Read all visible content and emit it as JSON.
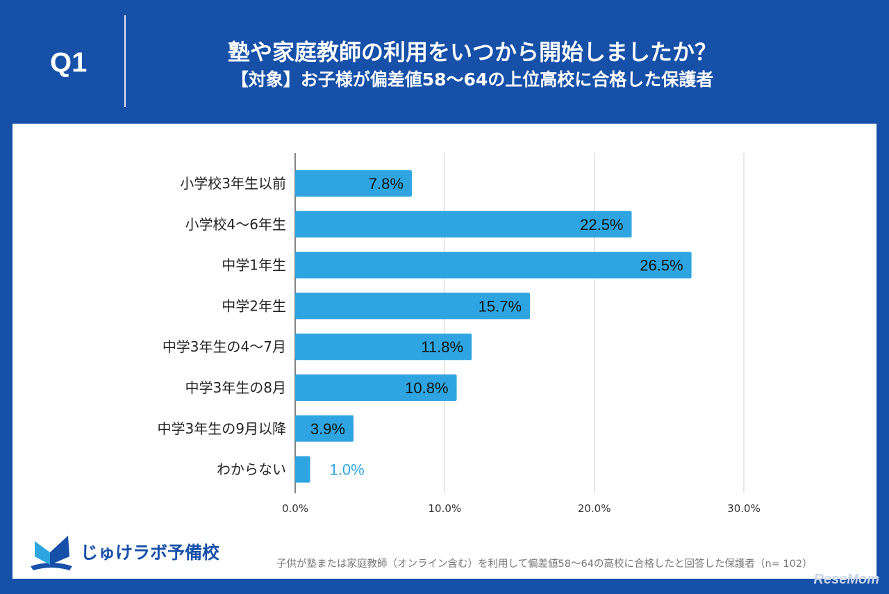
{
  "header": {
    "q_label": "Q1",
    "title": "塾や家庭教師の利用をいつから開始しましたか？",
    "subtitle": "【対象】お子様が偏差値58～64の上位高校に合格した保護者"
  },
  "chart_data": {
    "type": "bar",
    "orientation": "horizontal",
    "categories": [
      "小学校3年生以前",
      "小学校4～6年生",
      "中学1年生",
      "中学2年生",
      "中学3年生の4～7月",
      "中学3年生の8月",
      "中学3年生の9月以降",
      "わからない"
    ],
    "values": [
      7.8,
      22.5,
      26.5,
      15.7,
      11.8,
      10.8,
      3.9,
      1.0
    ],
    "data_labels": [
      "7.8%",
      "22.5%",
      "26.5%",
      "15.7%",
      "11.8%",
      "10.8%",
      "3.9%",
      "1.0%"
    ],
    "xlim": [
      0,
      30
    ],
    "xticks": [
      0,
      10,
      20,
      30
    ],
    "xtick_labels": [
      "0.0%",
      "10.0%",
      "20.0%",
      "30.0%"
    ],
    "grid": true,
    "bar_color": "#2ea5e0"
  },
  "footer": {
    "logo_text": "じゅけラボ予備校",
    "note": "子供が塾または家庭教師（オンライン含む）を利用して偏差値58～64の高校に合格したと回答した保護者（n= 102）",
    "watermark": "ReseMom"
  },
  "colors": {
    "background": "#1650a8",
    "bar": "#2ea5e0"
  }
}
